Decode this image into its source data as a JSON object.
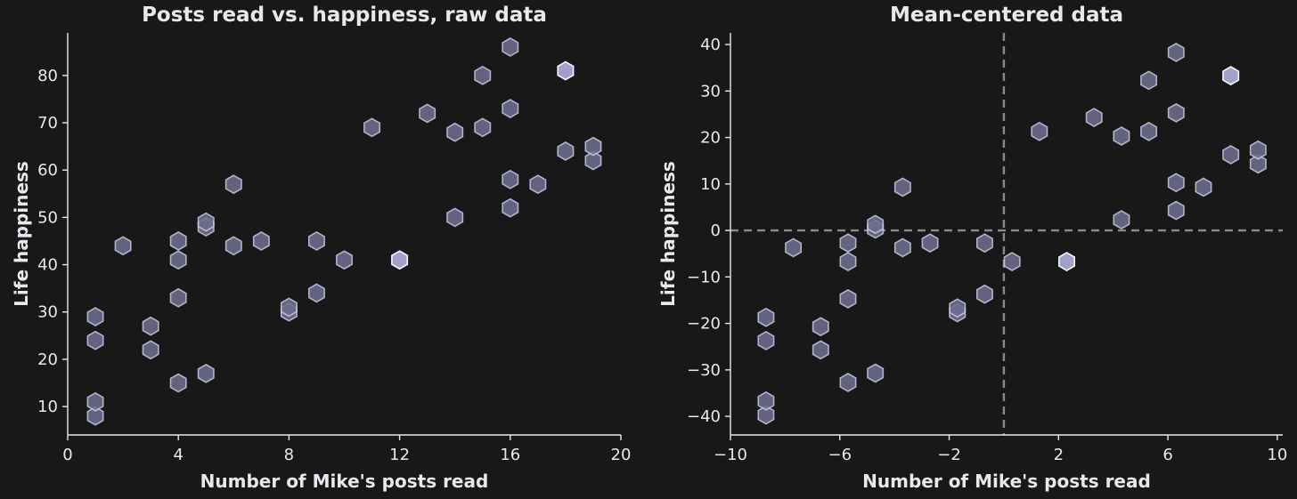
{
  "chart_data": [
    {
      "type": "scatter",
      "marker": "hexagon",
      "title": "Posts read vs. happiness, raw data",
      "xlabel": "Number of Mike's posts read",
      "ylabel": "Life happiness",
      "xlim": [
        0,
        20
      ],
      "ylim": [
        4,
        89
      ],
      "xticks": [
        0,
        4,
        8,
        12,
        16,
        20
      ],
      "yticks": [
        10,
        20,
        30,
        40,
        50,
        60,
        70,
        80
      ],
      "xtick_labels": [
        "0",
        "4",
        "8",
        "12",
        "16",
        "20"
      ],
      "ytick_labels": [
        "10",
        "20",
        "30",
        "40",
        "50",
        "60",
        "70",
        "80"
      ],
      "grid": false,
      "reference_lines": [],
      "points": [
        {
          "x": 1,
          "y": 8
        },
        {
          "x": 1,
          "y": 11
        },
        {
          "x": 1,
          "y": 24
        },
        {
          "x": 1,
          "y": 29
        },
        {
          "x": 2,
          "y": 44
        },
        {
          "x": 3,
          "y": 22
        },
        {
          "x": 3,
          "y": 27
        },
        {
          "x": 4,
          "y": 15
        },
        {
          "x": 4,
          "y": 33
        },
        {
          "x": 4,
          "y": 41
        },
        {
          "x": 4,
          "y": 45
        },
        {
          "x": 5,
          "y": 17
        },
        {
          "x": 5,
          "y": 48
        },
        {
          "x": 5,
          "y": 49
        },
        {
          "x": 6,
          "y": 44
        },
        {
          "x": 6,
          "y": 57
        },
        {
          "x": 7,
          "y": 45
        },
        {
          "x": 8,
          "y": 30
        },
        {
          "x": 8,
          "y": 31
        },
        {
          "x": 9,
          "y": 34
        },
        {
          "x": 9,
          "y": 45
        },
        {
          "x": 10,
          "y": 41
        },
        {
          "x": 11,
          "y": 69
        },
        {
          "x": 12,
          "y": 41
        },
        {
          "x": 13,
          "y": 72
        },
        {
          "x": 14,
          "y": 50
        },
        {
          "x": 14,
          "y": 68
        },
        {
          "x": 15,
          "y": 69
        },
        {
          "x": 15,
          "y": 80
        },
        {
          "x": 16,
          "y": 52
        },
        {
          "x": 16,
          "y": 58
        },
        {
          "x": 16,
          "y": 73
        },
        {
          "x": 16,
          "y": 86
        },
        {
          "x": 17,
          "y": 57
        },
        {
          "x": 18,
          "y": 64
        },
        {
          "x": 18,
          "y": 81
        },
        {
          "x": 19,
          "y": 62
        },
        {
          "x": 19,
          "y": 65
        }
      ],
      "highlight_points": [
        {
          "x": 12,
          "y": 41
        },
        {
          "x": 18,
          "y": 81
        }
      ]
    },
    {
      "type": "scatter",
      "marker": "hexagon",
      "title": "Mean-centered data",
      "xlabel": "Number of Mike's posts read",
      "ylabel": "Life happiness",
      "xlim": [
        -10,
        10.2
      ],
      "ylim": [
        -44,
        42.5
      ],
      "xticks": [
        -10,
        -6,
        -2,
        2,
        6,
        10
      ],
      "yticks": [
        -40,
        -30,
        -20,
        -10,
        0,
        10,
        20,
        30,
        40
      ],
      "xtick_labels": [
        "−10",
        "−6",
        "−2",
        "2",
        "6",
        "10"
      ],
      "ytick_labels": [
        "−40",
        "−30",
        "−20",
        "−10",
        "0",
        "10",
        "20",
        "30",
        "40"
      ],
      "grid": false,
      "reference_lines": [
        {
          "axis": "x",
          "value": 0
        },
        {
          "axis": "y",
          "value": 0
        }
      ],
      "points": [
        {
          "x": -8.7,
          "y": -39.7
        },
        {
          "x": -8.7,
          "y": -36.7
        },
        {
          "x": -8.7,
          "y": -23.7
        },
        {
          "x": -8.7,
          "y": -18.7
        },
        {
          "x": -7.7,
          "y": -3.7
        },
        {
          "x": -6.7,
          "y": -25.7
        },
        {
          "x": -6.7,
          "y": -20.7
        },
        {
          "x": -5.7,
          "y": -32.7
        },
        {
          "x": -5.7,
          "y": -14.7
        },
        {
          "x": -5.7,
          "y": -6.7
        },
        {
          "x": -5.7,
          "y": -2.7
        },
        {
          "x": -4.7,
          "y": -30.7
        },
        {
          "x": -4.7,
          "y": 0.3
        },
        {
          "x": -4.7,
          "y": 1.3
        },
        {
          "x": -3.7,
          "y": -3.7
        },
        {
          "x": -3.7,
          "y": 9.3
        },
        {
          "x": -2.7,
          "y": -2.7
        },
        {
          "x": -1.7,
          "y": -17.7
        },
        {
          "x": -1.7,
          "y": -16.7
        },
        {
          "x": -0.7,
          "y": -13.7
        },
        {
          "x": -0.7,
          "y": -2.7
        },
        {
          "x": 0.3,
          "y": -6.7
        },
        {
          "x": 1.3,
          "y": 21.3
        },
        {
          "x": 2.3,
          "y": -6.7
        },
        {
          "x": 3.3,
          "y": 24.3
        },
        {
          "x": 4.3,
          "y": 2.3
        },
        {
          "x": 4.3,
          "y": 20.3
        },
        {
          "x": 5.3,
          "y": 21.3
        },
        {
          "x": 5.3,
          "y": 32.3
        },
        {
          "x": 6.3,
          "y": 4.3
        },
        {
          "x": 6.3,
          "y": 10.3
        },
        {
          "x": 6.3,
          "y": 25.3
        },
        {
          "x": 6.3,
          "y": 38.3
        },
        {
          "x": 7.3,
          "y": 9.3
        },
        {
          "x": 8.3,
          "y": 16.3
        },
        {
          "x": 8.3,
          "y": 33.3
        },
        {
          "x": 9.3,
          "y": 14.3
        },
        {
          "x": 9.3,
          "y": 17.3
        }
      ],
      "highlight_points": [
        {
          "x": 2.3,
          "y": -6.7
        },
        {
          "x": 8.3,
          "y": 33.3
        }
      ]
    }
  ]
}
